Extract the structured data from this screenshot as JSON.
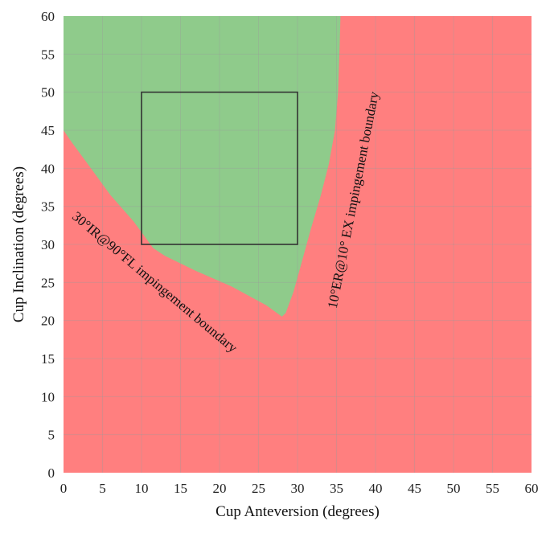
{
  "chart_data": {
    "type": "area",
    "title": "",
    "xlabel": "Cup Anteversion (degrees)",
    "ylabel": "Cup Inclination (degrees)",
    "xlim": [
      0,
      60
    ],
    "ylim": [
      0,
      60
    ],
    "xticks": [
      0,
      5,
      10,
      15,
      20,
      25,
      30,
      35,
      40,
      45,
      50,
      55,
      60
    ],
    "yticks": [
      0,
      5,
      10,
      15,
      20,
      25,
      30,
      35,
      40,
      45,
      50,
      55,
      60
    ],
    "grid": true,
    "colors": {
      "impingement_region": "#ff7f7f",
      "safe_region": "#8fcb8b",
      "target_box": "#333333",
      "grid": "#9a9a9a"
    },
    "safe_region_boundary": [
      [
        0,
        60
      ],
      [
        35.5,
        60
      ],
      [
        35.4,
        56
      ],
      [
        35.2,
        50
      ],
      [
        34.8,
        45
      ],
      [
        34,
        40.5
      ],
      [
        33,
        36.5
      ],
      [
        31.7,
        32
      ],
      [
        30.5,
        27.5
      ],
      [
        29.5,
        23.8
      ],
      [
        28.5,
        21
      ],
      [
        28,
        20.5
      ],
      [
        26,
        22
      ],
      [
        21.5,
        24.5
      ],
      [
        17,
        26.5
      ],
      [
        13,
        28.5
      ],
      [
        11.5,
        29.5
      ],
      [
        9,
        33
      ],
      [
        6,
        36.5
      ],
      [
        3.5,
        40
      ],
      [
        1,
        43.5
      ],
      [
        0,
        45
      ],
      [
        0,
        60
      ]
    ],
    "target_box": {
      "x": [
        10,
        30
      ],
      "y": [
        30,
        50
      ]
    },
    "annotations": [
      {
        "text": "30°IR@90°FL impingement boundary",
        "x": 1,
        "y": 33.5,
        "angle": 40
      },
      {
        "text": "10°ER@10° EX impingement boundary",
        "x": 35,
        "y": 21.5,
        "angle": -79
      }
    ]
  }
}
